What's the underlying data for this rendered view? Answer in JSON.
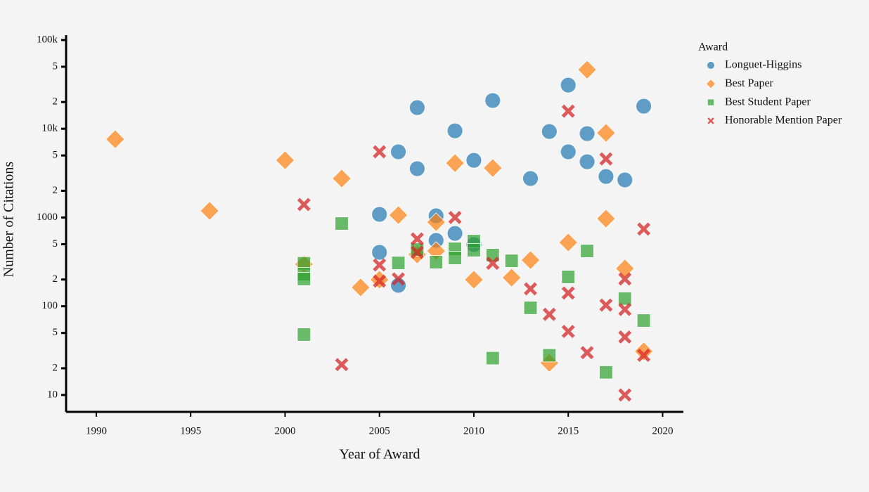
{
  "chart_data": {
    "type": "scatter",
    "x_label": "Year of Award",
    "y_label": "Number of Citations",
    "legend_title": "Award",
    "legend_position": "right",
    "ylog": true,
    "xlim": [
      1988.4,
      2021.1
    ],
    "xticks": [
      1990,
      1995,
      2000,
      2005,
      2010,
      2015,
      2020
    ],
    "ylim": [
      6.45,
      113500
    ],
    "yticks": [
      10,
      {
        "value": 20,
        "label": "2"
      },
      {
        "value": 50,
        "label": "5"
      },
      100,
      {
        "value": 200,
        "label": "2"
      },
      {
        "value": 500,
        "label": "5"
      },
      1000,
      {
        "value": 2000,
        "label": "2"
      },
      {
        "value": 5000,
        "label": "5"
      },
      {
        "value": 10000,
        "label": "10k"
      },
      {
        "value": 20000,
        "label": "2"
      },
      {
        "value": 50000,
        "label": "5"
      },
      {
        "value": 100000,
        "label": "100k"
      }
    ],
    "series": [
      {
        "name": "Longuet-Higgins",
        "color": "#1f77b4",
        "marker": "circle",
        "x": [
          2005,
          2005,
          2006,
          2006,
          2007,
          2007,
          2008,
          2008,
          2009,
          2009,
          2010,
          2010,
          2011,
          2013,
          2014,
          2015,
          2015,
          2016,
          2016,
          2017,
          2018,
          2019
        ],
        "values": [
          1084,
          405,
          5500,
          172,
          17300,
          3550,
          1045,
          552,
          9480,
          662,
          4410,
          495,
          20800,
          2750,
          9310,
          31000,
          5500,
          8820,
          4250,
          2900,
          2650,
          17950
        ]
      },
      {
        "name": "Best Paper",
        "color": "#ff7f0e",
        "marker": "diamond",
        "x": [
          1991,
          1996,
          2000,
          2001,
          2003,
          2004,
          2005,
          2006,
          2007,
          2008,
          2008,
          2009,
          2010,
          2011,
          2012,
          2013,
          2014,
          2015,
          2016,
          2017,
          2017,
          2018,
          2019
        ],
        "values": [
          7620,
          1190,
          4410,
          297,
          2750,
          163,
          199,
          1064,
          383,
          886,
          420,
          4100,
          199,
          3610,
          210,
          331,
          23,
          523,
          46300,
          8980,
          971,
          266,
          31
        ]
      },
      {
        "name": "Best Student Paper",
        "color": "#2ca02c",
        "marker": "square",
        "x": [
          2001,
          2001,
          2001,
          2001,
          2003,
          2006,
          2007,
          2008,
          2009,
          2009,
          2010,
          2010,
          2011,
          2011,
          2012,
          2013,
          2014,
          2015,
          2016,
          2017,
          2018,
          2019
        ],
        "values": [
          305,
          230,
          203,
          48,
          855,
          308,
          436,
          314,
          444,
          350,
          542,
          428,
          377,
          26,
          325,
          96,
          28,
          214,
          420,
          18,
          122,
          69
        ]
      },
      {
        "name": "Honorable Mention Paper",
        "color": "#d62728",
        "marker": "x",
        "x": [
          2001,
          2003,
          2005,
          2005,
          2005,
          2006,
          2007,
          2007,
          2009,
          2011,
          2013,
          2014,
          2015,
          2015,
          2015,
          2016,
          2017,
          2017,
          2018,
          2018,
          2018,
          2018,
          2019,
          2019
        ],
        "values": [
          1400,
          22,
          5500,
          292,
          192,
          203,
          573,
          405,
          1000,
          305,
          157,
          81,
          15800,
          141,
          52,
          30,
          4570,
          103,
          203,
          92,
          45,
          10,
          740,
          28
        ]
      }
    ]
  }
}
